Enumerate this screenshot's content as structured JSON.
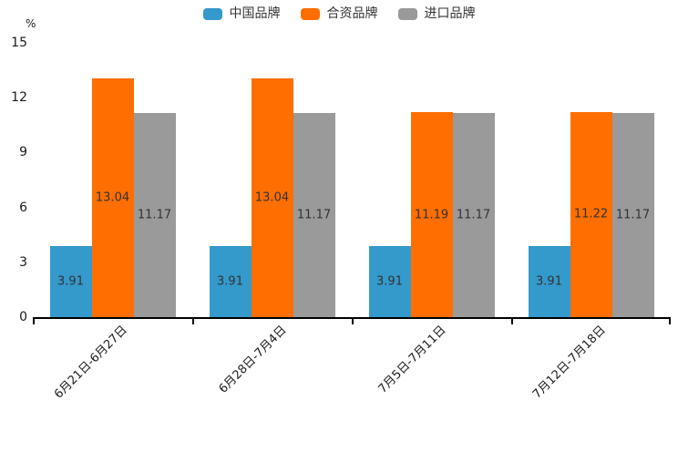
{
  "chart_data": {
    "type": "bar",
    "title": "",
    "ylabel": "%",
    "xlabel": "",
    "ylim": [
      0,
      15
    ],
    "yticks": [
      0,
      3,
      6,
      9,
      12,
      15
    ],
    "grid": false,
    "legend_position": "top-center",
    "value_labels": "centered-inside-bars",
    "categories": [
      "6月21日-6月27日",
      "6月28日-7月4日",
      "7月5日-7月11日",
      "7月12日-7月18日"
    ],
    "series": [
      {
        "name": "中国品牌",
        "color": "#3499CB",
        "values": [
          3.91,
          3.91,
          3.91,
          3.91
        ]
      },
      {
        "name": "合资品牌",
        "color": "#FF6E00",
        "values": [
          13.04,
          13.04,
          11.19,
          11.22
        ]
      },
      {
        "name": "进口品牌",
        "color": "#9A9A9A",
        "values": [
          11.17,
          11.17,
          11.17,
          11.17
        ]
      }
    ]
  },
  "colors": {
    "background": "#FFFFFF",
    "axis": "#000000",
    "tick_text": "#1A1A1A",
    "value_text": "#333333"
  }
}
